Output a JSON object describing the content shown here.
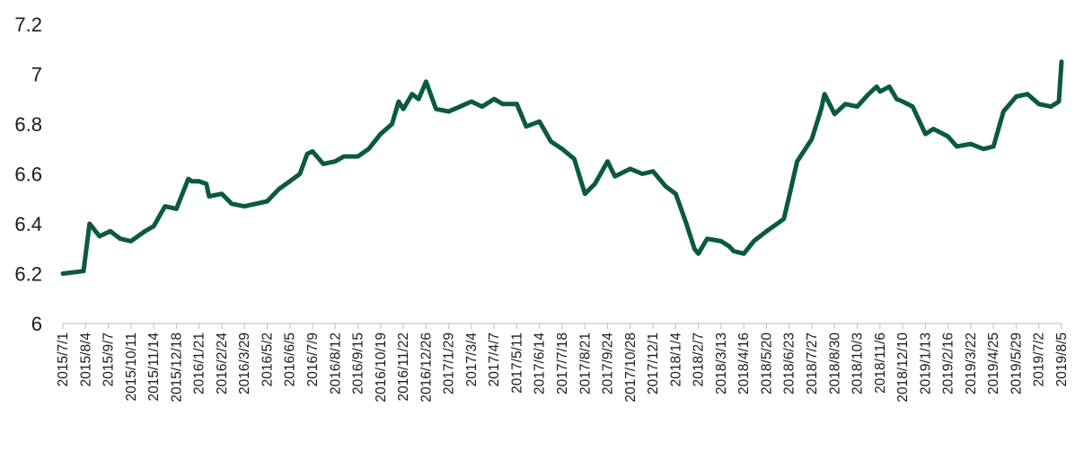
{
  "chart_data": {
    "type": "line",
    "title": "",
    "xlabel": "",
    "ylabel": "",
    "ylim": [
      6,
      7.2
    ],
    "yticks": [
      "6",
      "6.2",
      "6.4",
      "6.6",
      "6.8",
      "7",
      "7.2"
    ],
    "xticks": [
      "2015/7/1",
      "2015/8/4",
      "2015/9/7",
      "2015/10/11",
      "2015/11/14",
      "2015/12/18",
      "2016/1/21",
      "2016/2/24",
      "2016/3/29",
      "2016/5/2",
      "2016/6/5",
      "2016/7/9",
      "2016/8/12",
      "2016/9/15",
      "2016/10/19",
      "2016/11/22",
      "2016/12/26",
      "2017/1/29",
      "2017/3/4",
      "2017/4/7",
      "2017/5/11",
      "2017/6/14",
      "2017/7/18",
      "2017/8/21",
      "2017/9/24",
      "2017/10/28",
      "2017/12/1",
      "2018/1/4",
      "2018/2/7",
      "2018/3/13",
      "2018/4/16",
      "2018/5/20",
      "2018/6/23",
      "2018/7/27",
      "2018/8/30",
      "2018/10/3",
      "2018/11/6",
      "2018/12/10",
      "2019/1/13",
      "2019/2/16",
      "2019/3/22",
      "2019/4/25",
      "2019/5/29",
      "2019/7/2",
      "2019/8/5"
    ],
    "grid": false,
    "legend": "none",
    "series": [
      {
        "color": "#0b5a3e",
        "x": [
          "2015/7/1",
          "2015/8/1",
          "2015/8/10",
          "2015/8/25",
          "2015/9/10",
          "2015/9/25",
          "2015/10/11",
          "2015/11/1",
          "2015/11/14",
          "2015/12/1",
          "2015/12/18",
          "2016/1/5",
          "2016/1/10",
          "2016/1/21",
          "2016/2/1",
          "2016/2/5",
          "2016/2/24",
          "2016/3/10",
          "2016/3/29",
          "2016/4/15",
          "2016/5/2",
          "2016/5/20",
          "2016/6/5",
          "2016/6/20",
          "2016/7/1",
          "2016/7/9",
          "2016/7/25",
          "2016/8/12",
          "2016/8/25",
          "2016/9/15",
          "2016/10/1",
          "2016/10/19",
          "2016/11/5",
          "2016/11/15",
          "2016/11/22",
          "2016/12/5",
          "2016/12/15",
          "2016/12/26",
          "2017/1/10",
          "2017/1/29",
          "2017/2/15",
          "2017/3/4",
          "2017/3/20",
          "2017/4/7",
          "2017/4/20",
          "2017/5/11",
          "2017/5/25",
          "2017/6/14",
          "2017/7/1",
          "2017/7/18",
          "2017/8/5",
          "2017/8/21",
          "2017/9/5",
          "2017/9/24",
          "2017/10/5",
          "2017/10/28",
          "2017/11/15",
          "2017/12/1",
          "2017/12/20",
          "2018/1/4",
          "2018/1/20",
          "2018/2/1",
          "2018/2/7",
          "2018/2/20",
          "2018/3/13",
          "2018/3/25",
          "2018/4/1",
          "2018/4/16",
          "2018/5/1",
          "2018/5/20",
          "2018/6/5",
          "2018/6/15",
          "2018/6/23",
          "2018/7/5",
          "2018/7/27",
          "2018/8/10",
          "2018/8/15",
          "2018/8/30",
          "2018/9/15",
          "2018/10/3",
          "2018/10/20",
          "2018/11/1",
          "2018/11/6",
          "2018/11/20",
          "2018/12/1",
          "2018/12/10",
          "2018/12/25",
          "2019/1/13",
          "2019/1/25",
          "2019/2/16",
          "2019/3/1",
          "2019/3/22",
          "2019/4/10",
          "2019/4/25",
          "2019/5/10",
          "2019/5/29",
          "2019/6/15",
          "2019/7/2",
          "2019/7/20",
          "2019/8/1",
          "2019/8/5"
        ],
        "values": [
          6.2,
          6.21,
          6.4,
          6.35,
          6.37,
          6.34,
          6.33,
          6.37,
          6.39,
          6.47,
          6.46,
          6.58,
          6.57,
          6.57,
          6.56,
          6.51,
          6.52,
          6.48,
          6.47,
          6.48,
          6.49,
          6.54,
          6.57,
          6.6,
          6.68,
          6.69,
          6.64,
          6.65,
          6.67,
          6.67,
          6.7,
          6.76,
          6.8,
          6.89,
          6.86,
          6.92,
          6.9,
          6.97,
          6.86,
          6.85,
          6.87,
          6.89,
          6.87,
          6.9,
          6.88,
          6.88,
          6.79,
          6.81,
          6.73,
          6.7,
          6.66,
          6.52,
          6.56,
          6.65,
          6.59,
          6.62,
          6.6,
          6.61,
          6.55,
          6.52,
          6.4,
          6.3,
          6.28,
          6.34,
          6.33,
          6.31,
          6.29,
          6.28,
          6.33,
          6.37,
          6.4,
          6.42,
          6.51,
          6.65,
          6.74,
          6.86,
          6.92,
          6.84,
          6.88,
          6.87,
          6.92,
          6.95,
          6.93,
          6.95,
          6.9,
          6.89,
          6.87,
          6.76,
          6.78,
          6.75,
          6.71,
          6.72,
          6.7,
          6.71,
          6.85,
          6.91,
          6.92,
          6.88,
          6.87,
          6.89,
          7.05
        ]
      }
    ]
  }
}
